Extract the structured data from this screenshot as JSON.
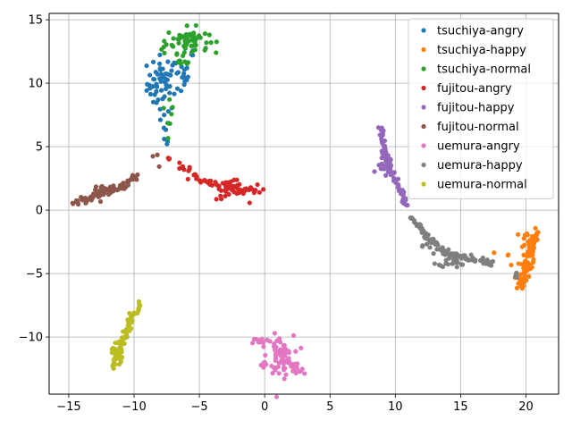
{
  "chart_data": {
    "type": "scatter",
    "title": "",
    "xlabel": "",
    "ylabel": "",
    "xlim": [
      -16.5,
      22.5
    ],
    "ylim": [
      -14.5,
      15.5
    ],
    "xticks": [
      -15,
      -10,
      -5,
      0,
      5,
      10,
      15,
      20
    ],
    "yticks": [
      -10,
      -5,
      0,
      5,
      10,
      15
    ],
    "grid": true,
    "legend_position": "top-right",
    "series": [
      {
        "name": "tsuchiya-angry",
        "color": "#1f77b4",
        "clusters": [
          {
            "cx": -7.8,
            "cy": 10.0,
            "sx": 0.6,
            "sy": 1.1,
            "n": 55
          },
          {
            "cx": -6.4,
            "cy": 10.3,
            "sx": 0.3,
            "sy": 0.6,
            "n": 14
          },
          {
            "cx": -7.6,
            "cy": 6.0,
            "sx": 0.15,
            "sy": 0.6,
            "n": 6
          },
          {
            "cx": -5.5,
            "cy": 12.3,
            "sx": 0.1,
            "sy": 0.2,
            "n": 3
          }
        ]
      },
      {
        "name": "tsuchiya-happy",
        "color": "#ff7f0e",
        "line": {
          "x": [
            19.5,
            20.0,
            20.5,
            20.8
          ],
          "y": [
            -6.0,
            -4.5,
            -3.0,
            -1.6
          ]
        },
        "clusters": [
          {
            "cx": 20.2,
            "cy": -3.2,
            "sx": 0.35,
            "sy": 1.2,
            "n": 40
          },
          {
            "cx": 19.6,
            "cy": -5.5,
            "sx": 0.25,
            "sy": 0.5,
            "n": 14
          },
          {
            "cx": 18.6,
            "cy": -3.7,
            "sx": 0.3,
            "sy": 0.3,
            "n": 4
          }
        ]
      },
      {
        "name": "tsuchiya-normal",
        "color": "#2ca02c",
        "clusters": [
          {
            "cx": -5.9,
            "cy": 13.4,
            "sx": 0.8,
            "sy": 0.5,
            "n": 55
          },
          {
            "cx": -6.2,
            "cy": 11.9,
            "sx": 0.3,
            "sy": 0.3,
            "n": 10
          },
          {
            "cx": -7.3,
            "cy": 7.8,
            "sx": 0.15,
            "sy": 1.0,
            "n": 8
          },
          {
            "cx": -7.6,
            "cy": 12.8,
            "sx": 0.2,
            "sy": 0.3,
            "n": 4
          }
        ]
      },
      {
        "name": "fujitou-angry",
        "color": "#d62728",
        "line": {
          "x": [
            -6.5,
            -5.0,
            -3.5,
            -2.0,
            -0.2
          ],
          "y": [
            3.5,
            2.4,
            2.0,
            1.5,
            1.7
          ]
        },
        "clusters": [
          {
            "cx": -2.5,
            "cy": 1.6,
            "sx": 0.6,
            "sy": 0.4,
            "n": 25
          },
          {
            "cx": -7.4,
            "cy": 3.9,
            "sx": 0.1,
            "sy": 0.2,
            "n": 3
          }
        ]
      },
      {
        "name": "fujitou-happy",
        "color": "#9467bd",
        "line": {
          "x": [
            8.9,
            9.1,
            9.5,
            9.9,
            10.5,
            10.9
          ],
          "y": [
            6.6,
            5.0,
            3.8,
            2.5,
            1.2,
            0.3
          ]
        },
        "clusters": [
          {
            "cx": 9.2,
            "cy": 3.4,
            "sx": 0.3,
            "sy": 0.4,
            "n": 20
          }
        ]
      },
      {
        "name": "fujitou-normal",
        "color": "#8c564b",
        "line": {
          "x": [
            -14.7,
            -13.5,
            -12.5,
            -11.5,
            -10.5,
            -9.6
          ],
          "y": [
            0.4,
            0.9,
            1.4,
            1.7,
            2.1,
            2.9
          ]
        },
        "clusters": [
          {
            "cx": -12.6,
            "cy": 1.4,
            "sx": 0.5,
            "sy": 0.3,
            "n": 20
          },
          {
            "cx": -8.3,
            "cy": 3.9,
            "sx": 0.2,
            "sy": 0.3,
            "n": 3
          }
        ]
      },
      {
        "name": "uemura-angry",
        "color": "#e377c2",
        "clusters": [
          {
            "cx": 1.2,
            "cy": -11.5,
            "sx": 0.5,
            "sy": 0.8,
            "n": 60
          },
          {
            "cx": 2.3,
            "cy": -12.6,
            "sx": 0.4,
            "sy": 0.3,
            "n": 15
          },
          {
            "cx": -0.3,
            "cy": -10.4,
            "sx": 0.3,
            "sy": 0.2,
            "n": 10
          },
          {
            "cx": 0.0,
            "cy": -12.2,
            "sx": 0.3,
            "sy": 0.2,
            "n": 8
          }
        ]
      },
      {
        "name": "uemura-happy",
        "color": "#7f7f7f",
        "line": {
          "x": [
            11.2,
            12.0,
            13.0,
            14.0,
            15.0,
            16.5,
            17.5
          ],
          "y": [
            -0.6,
            -1.5,
            -2.6,
            -3.3,
            -3.8,
            -4.0,
            -4.2
          ]
        },
        "clusters": [
          {
            "cx": 14.5,
            "cy": -3.8,
            "sx": 0.6,
            "sy": 0.35,
            "n": 30
          },
          {
            "cx": 12.5,
            "cy": -2.6,
            "sx": 0.4,
            "sy": 0.3,
            "n": 14
          },
          {
            "cx": 19.3,
            "cy": -5.2,
            "sx": 0.15,
            "sy": 0.25,
            "n": 5
          }
        ]
      },
      {
        "name": "uemura-normal",
        "color": "#bcbd22",
        "line": {
          "x": [
            -11.7,
            -11.2,
            -10.7,
            -10.2,
            -9.5
          ],
          "y": [
            -12.4,
            -11.0,
            -9.8,
            -8.5,
            -7.3
          ]
        },
        "clusters": [
          {
            "cx": -11.3,
            "cy": -11.2,
            "sx": 0.2,
            "sy": 0.6,
            "n": 20
          }
        ]
      }
    ]
  },
  "legend": {
    "items": [
      {
        "label": "tsuchiya-angry",
        "color": "#1f77b4"
      },
      {
        "label": "tsuchiya-happy",
        "color": "#ff7f0e"
      },
      {
        "label": "tsuchiya-normal",
        "color": "#2ca02c"
      },
      {
        "label": "fujitou-angry",
        "color": "#d62728"
      },
      {
        "label": "fujitou-happy",
        "color": "#9467bd"
      },
      {
        "label": "fujitou-normal",
        "color": "#8c564b"
      },
      {
        "label": "uemura-angry",
        "color": "#e377c2"
      },
      {
        "label": "uemura-happy",
        "color": "#7f7f7f"
      },
      {
        "label": "uemura-normal",
        "color": "#bcbd22"
      }
    ]
  }
}
